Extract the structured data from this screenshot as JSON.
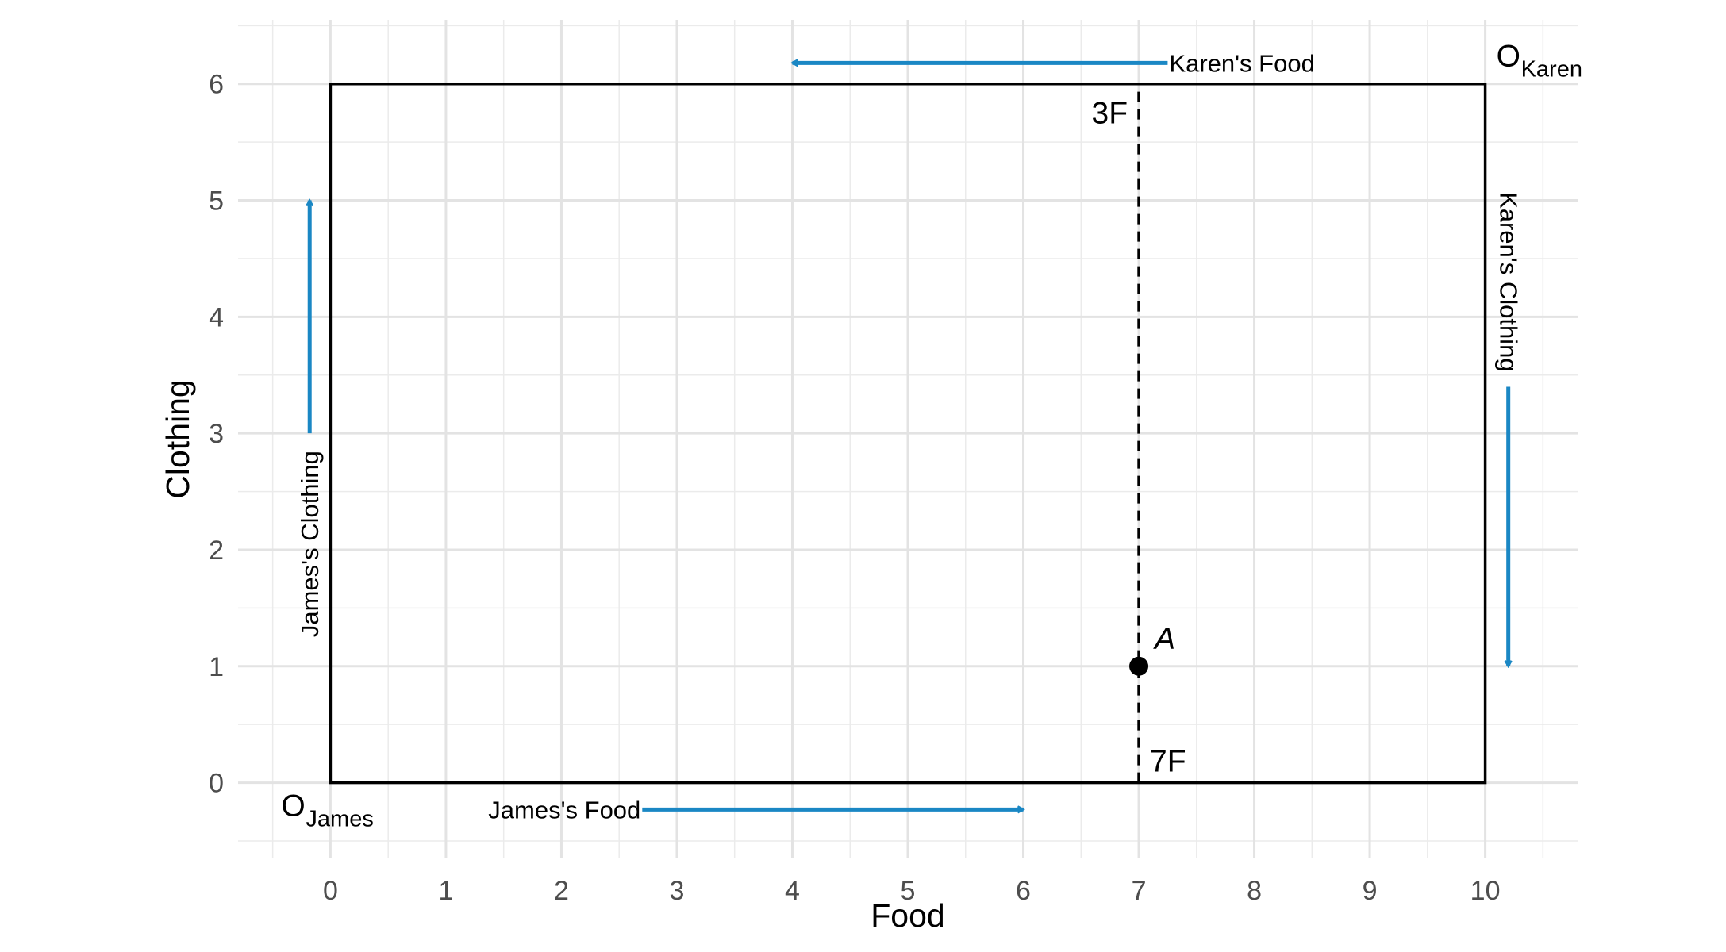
{
  "chart_data": {
    "type": "scatter",
    "title": "",
    "xlabel": "Food",
    "ylabel": "Clothing",
    "xlim": [
      -0.8,
      10.8
    ],
    "ylim": [
      -0.65,
      6.55
    ],
    "x_ticks": [
      0,
      1,
      2,
      3,
      4,
      5,
      6,
      7,
      8,
      9,
      10
    ],
    "x_tick_labels": [
      "0",
      "1",
      "2",
      "3",
      "4",
      "5",
      "6",
      "7",
      "8",
      "9",
      "10"
    ],
    "y_ticks": [
      0,
      1,
      2,
      3,
      4,
      5,
      6
    ],
    "y_tick_labels": [
      "0",
      "1",
      "2",
      "3",
      "4",
      "5",
      "6"
    ],
    "grid": true,
    "accent_color": "#1a87c4",
    "edgeworth_box": {
      "x_min": 0,
      "x_max": 10,
      "y_min": 0,
      "y_max": 6
    },
    "dashed_line": {
      "x": 7,
      "y_from": 0,
      "y_to": 6
    },
    "point": {
      "label": "A",
      "x": 7,
      "y": 1
    },
    "origins": [
      {
        "label": "O",
        "subscript": "James",
        "x": 0,
        "y": 0
      },
      {
        "label": "O",
        "subscript": "Karen",
        "x": 10,
        "y": 6
      }
    ],
    "arrows": [
      {
        "label": "James's Food",
        "from": [
          2.7,
          -0.23
        ],
        "to": [
          6.0,
          -0.23
        ]
      },
      {
        "label": "James's Clothing",
        "from": [
          -0.18,
          3.0
        ],
        "to": [
          -0.18,
          5.0
        ]
      },
      {
        "label": "Karen's Food",
        "from": [
          7.25,
          6.18
        ],
        "to": [
          4.0,
          6.18
        ]
      },
      {
        "label": "Karen's Clothing",
        "from": [
          10.2,
          3.4
        ],
        "to": [
          10.2,
          1.0
        ]
      }
    ],
    "annotations": [
      {
        "text": "3F",
        "x": 7,
        "y": 6
      },
      {
        "text": "7F",
        "x": 7,
        "y": 0
      }
    ]
  }
}
